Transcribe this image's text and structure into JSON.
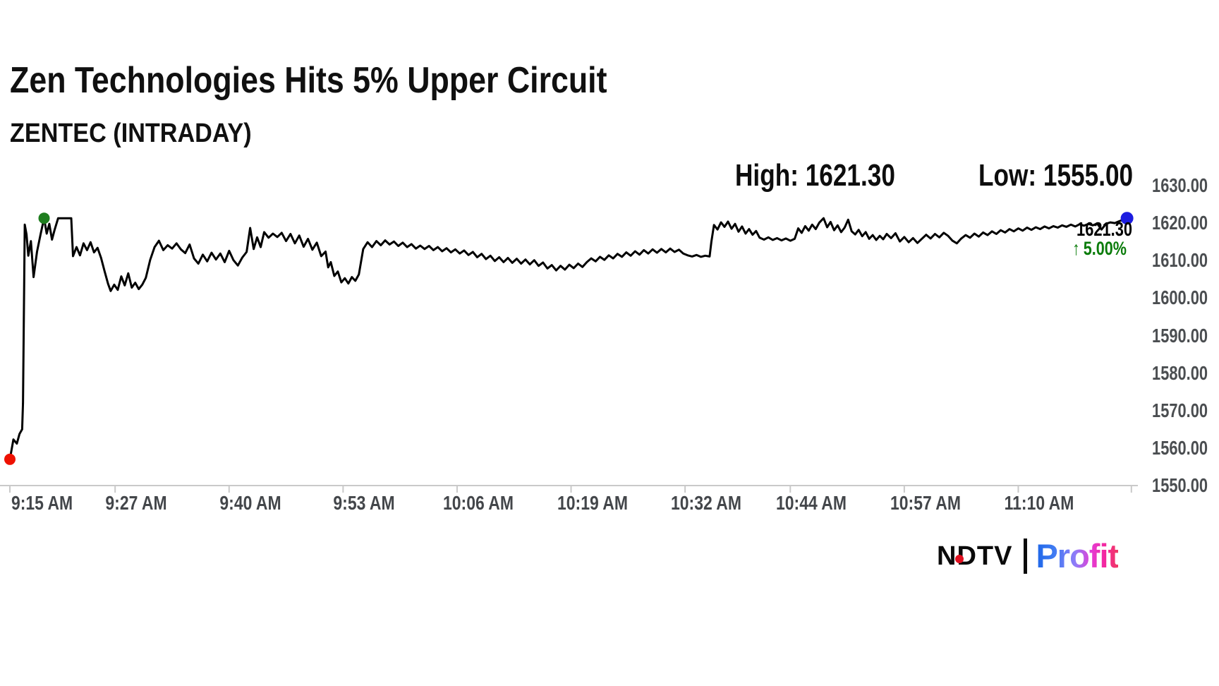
{
  "header": {
    "title": "Zen Technologies Hits 5% Upper Circuit",
    "subtitle": "ZENTEC (INTRADAY)"
  },
  "stats": {
    "high_label": "High: 1621.30",
    "low_label": "Low: 1555.00"
  },
  "annotation": {
    "last_price": "1621.30",
    "arrow": "↑",
    "change_percent": "5.00%"
  },
  "logo": {
    "ndtv": "NDTV",
    "profit": "Profit"
  },
  "colors": {
    "line": "#000000",
    "axis": "#c9c9c9",
    "y_label": "#4b4e51",
    "x_label": "#43464a",
    "change_green": "#0b7c0b",
    "high_marker_green": "#1e7d1e",
    "low_marker_red": "#ee1100",
    "last_marker_blue": "#1c1ce0",
    "ndtv_black": "#0a0a0a",
    "ndtv_dot_red": "#e01020"
  },
  "chart_data": {
    "type": "line",
    "title": "Zen Technologies Hits 5% Upper Circuit",
    "symbol": "ZENTEC",
    "session": "INTRADAY",
    "high": 1621.3,
    "low": 1555.0,
    "last": 1621.3,
    "change_percent": 5.0,
    "grid": false,
    "legend": false,
    "x_unit": "minutes after 9:15 AM",
    "xlim": [
      0,
      128.5
    ],
    "ylim": [
      1550,
      1630
    ],
    "y_ticks": [
      {
        "v": 1550,
        "label": "1550.00"
      },
      {
        "v": 1560,
        "label": "1560.00"
      },
      {
        "v": 1570,
        "label": "1570.00"
      },
      {
        "v": 1580,
        "label": "1580.00"
      },
      {
        "v": 1590,
        "label": "1590.00"
      },
      {
        "v": 1600,
        "label": "1600.00"
      },
      {
        "v": 1610,
        "label": "1610.00"
      },
      {
        "v": 1620,
        "label": "1620.00"
      },
      {
        "v": 1630,
        "label": "1630.00"
      }
    ],
    "x_ticks": [
      {
        "t": 0,
        "label": "9:15 AM"
      },
      {
        "t": 12,
        "label": "9:27 AM"
      },
      {
        "t": 25,
        "label": "9:40 AM"
      },
      {
        "t": 38,
        "label": "9:53 AM"
      },
      {
        "t": 51,
        "label": "10:06 AM"
      },
      {
        "t": 64,
        "label": "10:19 AM"
      },
      {
        "t": 77,
        "label": "10:32 AM"
      },
      {
        "t": 89,
        "label": "10:44 AM"
      },
      {
        "t": 102,
        "label": "10:57 AM"
      },
      {
        "t": 115,
        "label": "11:10 AM"
      },
      {
        "t": 127.9,
        "label": ""
      }
    ],
    "markers": [
      {
        "name": "low-open-marker",
        "t": 0,
        "v": 1557.0,
        "color": "#ee1100",
        "r": 8
      },
      {
        "name": "high-marker",
        "t": 3.9,
        "v": 1621.3,
        "color": "#1e7d1e",
        "r": 8
      },
      {
        "name": "last-marker",
        "t": 127.4,
        "v": 1621.3,
        "color": "#1c1ce0",
        "r": 9
      }
    ],
    "series": [
      {
        "name": "ZENTEC price",
        "points": [
          [
            0,
            1557
          ],
          [
            0.4,
            1562.3
          ],
          [
            0.8,
            1561.2
          ],
          [
            1.1,
            1563.8
          ],
          [
            1.4,
            1565
          ],
          [
            1.5,
            1572
          ],
          [
            1.7,
            1619.6
          ],
          [
            1.9,
            1617
          ],
          [
            2.1,
            1611.3
          ],
          [
            2.4,
            1615.2
          ],
          [
            2.7,
            1605.6
          ],
          [
            3.1,
            1612.4
          ],
          [
            3.5,
            1617
          ],
          [
            3.9,
            1621.3
          ],
          [
            4.2,
            1617.2
          ],
          [
            4.5,
            1619.8
          ],
          [
            4.8,
            1615.6
          ],
          [
            5.1,
            1618.2
          ],
          [
            5.5,
            1621.3
          ],
          [
            7,
            1621.3
          ],
          [
            7.2,
            1611.2
          ],
          [
            7.6,
            1613.6
          ],
          [
            8,
            1611.4
          ],
          [
            8.4,
            1614.6
          ],
          [
            8.8,
            1612.8
          ],
          [
            9.2,
            1614.9
          ],
          [
            9.6,
            1612.2
          ],
          [
            10,
            1613.4
          ],
          [
            10.4,
            1610.7
          ],
          [
            10.8,
            1607.2
          ],
          [
            11.2,
            1603.8
          ],
          [
            11.5,
            1601.9
          ],
          [
            11.9,
            1603.6
          ],
          [
            12.3,
            1602.2
          ],
          [
            12.7,
            1605.8
          ],
          [
            13.1,
            1603.4
          ],
          [
            13.5,
            1606.6
          ],
          [
            13.9,
            1602.8
          ],
          [
            14.3,
            1604.1
          ],
          [
            14.7,
            1602.4
          ],
          [
            15.1,
            1603.6
          ],
          [
            15.5,
            1605.4
          ],
          [
            16,
            1610.2
          ],
          [
            16.5,
            1613.6
          ],
          [
            17,
            1615.3
          ],
          [
            17.5,
            1612.8
          ],
          [
            18,
            1614.1
          ],
          [
            18.5,
            1613.2
          ],
          [
            19,
            1614.6
          ],
          [
            19.5,
            1613
          ],
          [
            20,
            1612
          ],
          [
            20.5,
            1614.3
          ],
          [
            21,
            1610.6
          ],
          [
            21.5,
            1609.2
          ],
          [
            22,
            1611.6
          ],
          [
            22.5,
            1609.8
          ],
          [
            23,
            1612.1
          ],
          [
            23.5,
            1610.3
          ],
          [
            24,
            1611.9
          ],
          [
            24.5,
            1609.6
          ],
          [
            25,
            1612.6
          ],
          [
            25.5,
            1610.1
          ],
          [
            26,
            1608.7
          ],
          [
            26.5,
            1610.8
          ],
          [
            27,
            1612.3
          ],
          [
            27.4,
            1618.7
          ],
          [
            27.8,
            1613.1
          ],
          [
            28.2,
            1616.2
          ],
          [
            28.6,
            1613.6
          ],
          [
            29,
            1617.6
          ],
          [
            29.5,
            1616.1
          ],
          [
            30,
            1617.2
          ],
          [
            30.5,
            1616.3
          ],
          [
            31,
            1617.4
          ],
          [
            31.5,
            1615.2
          ],
          [
            32,
            1617.1
          ],
          [
            32.5,
            1614.6
          ],
          [
            33,
            1616.7
          ],
          [
            33.5,
            1613.7
          ],
          [
            34,
            1615.8
          ],
          [
            34.5,
            1612.9
          ],
          [
            35,
            1614.8
          ],
          [
            35.5,
            1611.2
          ],
          [
            36,
            1612.4
          ],
          [
            36.3,
            1608.2
          ],
          [
            36.6,
            1609.6
          ],
          [
            37,
            1605.9
          ],
          [
            37.4,
            1607.1
          ],
          [
            37.8,
            1604.2
          ],
          [
            38.2,
            1605.3
          ],
          [
            38.6,
            1603.9
          ],
          [
            39,
            1605.6
          ],
          [
            39.4,
            1604.6
          ],
          [
            39.8,
            1606.3
          ],
          [
            40.3,
            1613.1
          ],
          [
            40.8,
            1614.9
          ],
          [
            41.3,
            1613.6
          ],
          [
            41.8,
            1615.2
          ],
          [
            42.3,
            1614.1
          ],
          [
            42.8,
            1615.4
          ],
          [
            43.3,
            1614.3
          ],
          [
            43.8,
            1615.1
          ],
          [
            44.3,
            1613.9
          ],
          [
            44.8,
            1614.8
          ],
          [
            45.3,
            1613.6
          ],
          [
            45.8,
            1614.4
          ],
          [
            46.3,
            1613.2
          ],
          [
            46.8,
            1614
          ],
          [
            47.3,
            1613.1
          ],
          [
            47.8,
            1613.9
          ],
          [
            48.3,
            1612.8
          ],
          [
            48.8,
            1613.6
          ],
          [
            49.3,
            1612.5
          ],
          [
            49.8,
            1613.3
          ],
          [
            50.3,
            1612.2
          ],
          [
            50.8,
            1613
          ],
          [
            51.3,
            1611.9
          ],
          [
            51.8,
            1612.7
          ],
          [
            52.3,
            1611.5
          ],
          [
            52.8,
            1612.3
          ],
          [
            53.3,
            1610.9
          ],
          [
            53.8,
            1611.8
          ],
          [
            54.3,
            1610.4
          ],
          [
            54.8,
            1611.3
          ],
          [
            55.3,
            1609.9
          ],
          [
            55.8,
            1610.9
          ],
          [
            56.3,
            1609.6
          ],
          [
            56.8,
            1610.7
          ],
          [
            57.3,
            1609.4
          ],
          [
            57.8,
            1610.5
          ],
          [
            58.3,
            1609.2
          ],
          [
            58.8,
            1610.3
          ],
          [
            59.3,
            1609
          ],
          [
            59.8,
            1610.1
          ],
          [
            60.3,
            1608.6
          ],
          [
            60.8,
            1609.5
          ],
          [
            61.3,
            1607.9
          ],
          [
            61.8,
            1608.8
          ],
          [
            62.3,
            1607.4
          ],
          [
            62.8,
            1608.6
          ],
          [
            63.3,
            1607.6
          ],
          [
            63.8,
            1608.9
          ],
          [
            64.3,
            1608
          ],
          [
            64.8,
            1609.2
          ],
          [
            65.3,
            1608.3
          ],
          [
            65.8,
            1609.6
          ],
          [
            66.3,
            1610.6
          ],
          [
            66.8,
            1609.8
          ],
          [
            67.3,
            1611
          ],
          [
            67.8,
            1610.2
          ],
          [
            68.3,
            1611.4
          ],
          [
            68.8,
            1610.6
          ],
          [
            69.3,
            1611.8
          ],
          [
            69.8,
            1611
          ],
          [
            70.3,
            1612.2
          ],
          [
            70.8,
            1611.3
          ],
          [
            71.3,
            1612.5
          ],
          [
            71.8,
            1611.6
          ],
          [
            72.3,
            1612.8
          ],
          [
            72.8,
            1611.9
          ],
          [
            73.3,
            1613
          ],
          [
            73.8,
            1612.1
          ],
          [
            74.3,
            1613.1
          ],
          [
            74.8,
            1612.2
          ],
          [
            75.3,
            1613.2
          ],
          [
            75.8,
            1612.3
          ],
          [
            76.3,
            1612.9
          ],
          [
            76.8,
            1611.9
          ],
          [
            77.3,
            1611.4
          ],
          [
            77.8,
            1611.1
          ],
          [
            78.3,
            1611.5
          ],
          [
            78.8,
            1611
          ],
          [
            79.3,
            1611.3
          ],
          [
            79.8,
            1611.1
          ],
          [
            80,
            1615
          ],
          [
            80.3,
            1619.5
          ],
          [
            80.7,
            1618.3
          ],
          [
            81.1,
            1620.2
          ],
          [
            81.5,
            1619
          ],
          [
            81.9,
            1620.4
          ],
          [
            82.3,
            1618.5
          ],
          [
            82.7,
            1619.8
          ],
          [
            83.1,
            1617.7
          ],
          [
            83.5,
            1619.1
          ],
          [
            83.9,
            1617.2
          ],
          [
            84.3,
            1618.4
          ],
          [
            84.7,
            1616.9
          ],
          [
            85.1,
            1617.9
          ],
          [
            85.5,
            1616.1
          ],
          [
            86,
            1615.6
          ],
          [
            86.5,
            1616.2
          ],
          [
            87,
            1615.5
          ],
          [
            87.5,
            1616
          ],
          [
            88,
            1615.4
          ],
          [
            88.5,
            1615.9
          ],
          [
            89,
            1615.3
          ],
          [
            89.5,
            1615.8
          ],
          [
            89.9,
            1618.6
          ],
          [
            90.3,
            1617.4
          ],
          [
            90.7,
            1619.2
          ],
          [
            91.1,
            1618
          ],
          [
            91.5,
            1619.6
          ],
          [
            91.9,
            1618.4
          ],
          [
            92.3,
            1620.1
          ],
          [
            92.8,
            1621.3
          ],
          [
            93.2,
            1618.9
          ],
          [
            93.6,
            1620.3
          ],
          [
            94,
            1618.1
          ],
          [
            94.4,
            1619.4
          ],
          [
            94.8,
            1617.6
          ],
          [
            95.2,
            1618.8
          ],
          [
            95.6,
            1620.9
          ],
          [
            96,
            1617.8
          ],
          [
            96.4,
            1617
          ],
          [
            96.8,
            1618.2
          ],
          [
            97.2,
            1616.5
          ],
          [
            97.6,
            1617.6
          ],
          [
            98,
            1615.8
          ],
          [
            98.4,
            1616.8
          ],
          [
            98.8,
            1615.5
          ],
          [
            99.2,
            1616.6
          ],
          [
            99.6,
            1615.7
          ],
          [
            100,
            1617.1
          ],
          [
            100.5,
            1616
          ],
          [
            101,
            1617.3
          ],
          [
            101.5,
            1615.1
          ],
          [
            102,
            1616.3
          ],
          [
            102.5,
            1614.9
          ],
          [
            103,
            1616
          ],
          [
            103.5,
            1614.7
          ],
          [
            104,
            1615.8
          ],
          [
            104.5,
            1616.9
          ],
          [
            105,
            1615.9
          ],
          [
            105.5,
            1617.1
          ],
          [
            106,
            1616.2
          ],
          [
            106.5,
            1617.4
          ],
          [
            107,
            1616.6
          ],
          [
            107.5,
            1615.3
          ],
          [
            108,
            1614.6
          ],
          [
            108.5,
            1615.9
          ],
          [
            109,
            1616.8
          ],
          [
            109.5,
            1616.1
          ],
          [
            110,
            1617.2
          ],
          [
            110.5,
            1616.4
          ],
          [
            111,
            1617.5
          ],
          [
            111.5,
            1616.8
          ],
          [
            112,
            1617.8
          ],
          [
            112.5,
            1617.1
          ],
          [
            113,
            1618.1
          ],
          [
            113.5,
            1617.5
          ],
          [
            114,
            1618.4
          ],
          [
            114.5,
            1617.8
          ],
          [
            115,
            1618.6
          ],
          [
            115.5,
            1618
          ],
          [
            116,
            1618.8
          ],
          [
            116.5,
            1618.2
          ],
          [
            117,
            1618.9
          ],
          [
            117.5,
            1618.4
          ],
          [
            118,
            1619.1
          ],
          [
            118.5,
            1618.6
          ],
          [
            119,
            1619.2
          ],
          [
            119.5,
            1618.8
          ],
          [
            120,
            1619.4
          ],
          [
            120.5,
            1619
          ],
          [
            121,
            1619.6
          ],
          [
            121.5,
            1619.1
          ],
          [
            122,
            1619.7
          ],
          [
            122.5,
            1619.3
          ],
          [
            123,
            1619.8
          ],
          [
            123.5,
            1619.4
          ],
          [
            124,
            1619.9
          ],
          [
            124.5,
            1618.3
          ],
          [
            125,
            1619.8
          ],
          [
            125.5,
            1620.2
          ],
          [
            126,
            1620
          ],
          [
            126.5,
            1620.5
          ],
          [
            127,
            1620.9
          ],
          [
            127.4,
            1621.3
          ]
        ]
      }
    ]
  }
}
